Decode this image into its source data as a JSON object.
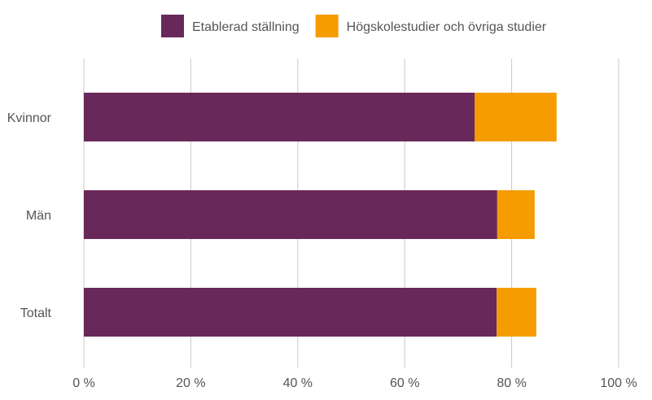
{
  "chart_data": {
    "type": "bar",
    "orientation": "horizontal",
    "stacked": true,
    "categories": [
      "Kvinnor",
      "Män",
      "Totalt"
    ],
    "series": [
      {
        "name": "Etablerad ställning",
        "color": "#69285a",
        "values": [
          73.1,
          77.3,
          77.2
        ]
      },
      {
        "name": "Högskolestudier och övriga studier",
        "color": "#f59c00",
        "values": [
          15.3,
          7.0,
          7.4
        ]
      }
    ],
    "xlim": [
      0,
      100
    ],
    "xticks": [
      0,
      20,
      40,
      60,
      80,
      100
    ],
    "xtick_labels": [
      "0 %",
      "20 %",
      "40 %",
      "60 %",
      "80 %",
      "100 %"
    ],
    "grid": "vertical",
    "legend_position": "top"
  }
}
